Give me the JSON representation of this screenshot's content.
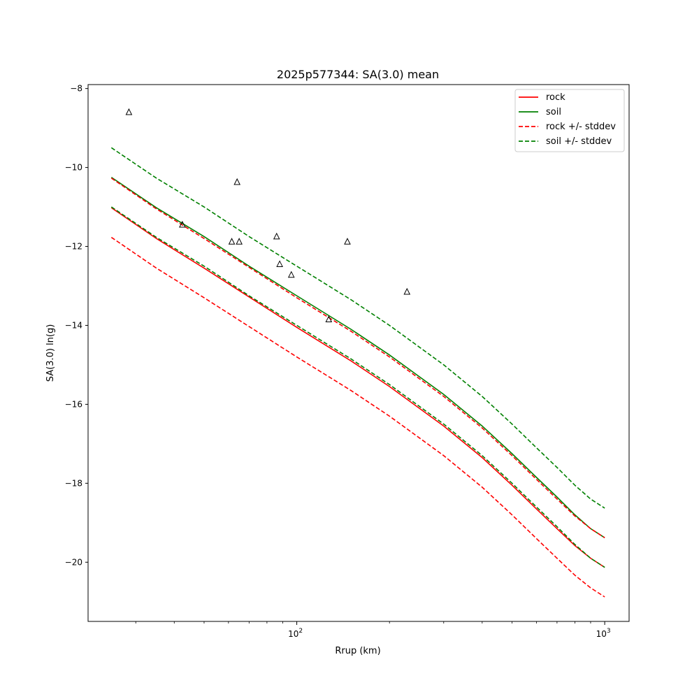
{
  "chart_data": {
    "type": "line",
    "title": "2025p577344: SA(3.0) mean",
    "xlabel": "Rrup (km)",
    "ylabel": "SA(3.0) ln(g)",
    "xscale": "log",
    "xlim": [
      21.0,
      1200.0
    ],
    "ylim": [
      -21.5,
      -7.9
    ],
    "x_ticks": [
      {
        "value": 100,
        "base": "10",
        "exp": "2"
      },
      {
        "value": 1000,
        "base": "10",
        "exp": "3"
      }
    ],
    "y_ticks": [
      {
        "value": -8,
        "label": "−8"
      },
      {
        "value": -10,
        "label": "−10"
      },
      {
        "value": -12,
        "label": "−12"
      },
      {
        "value": -14,
        "label": "−14"
      },
      {
        "value": -16,
        "label": "−16"
      },
      {
        "value": -18,
        "label": "−18"
      },
      {
        "value": -20,
        "label": "−20"
      }
    ],
    "grid": false,
    "legend_position": "top-right",
    "x": [
      25,
      35,
      50,
      70,
      100,
      150,
      200,
      300,
      400,
      500,
      600,
      700,
      800,
      900,
      1000
    ],
    "series": [
      {
        "name": "rock",
        "style": "solid",
        "color": "#ff0000",
        "legend": true,
        "values": [
          -11.02,
          -11.8,
          -12.55,
          -13.28,
          -14.05,
          -14.9,
          -15.55,
          -16.55,
          -17.35,
          -18.05,
          -18.65,
          -19.15,
          -19.58,
          -19.9,
          -20.13
        ]
      },
      {
        "name": "soil",
        "style": "solid",
        "color": "#008000",
        "legend": true,
        "values": [
          -10.25,
          -11.02,
          -11.75,
          -12.5,
          -13.25,
          -14.1,
          -14.75,
          -15.75,
          -16.55,
          -17.25,
          -17.85,
          -18.35,
          -18.8,
          -19.15,
          -19.38
        ]
      },
      {
        "name": "rock +/- stddev",
        "style": "dashed",
        "color": "#ff0000",
        "legend": true,
        "values": [
          -11.77,
          -12.55,
          -13.3,
          -14.03,
          -14.8,
          -15.65,
          -16.3,
          -17.3,
          -18.1,
          -18.8,
          -19.4,
          -19.9,
          -20.33,
          -20.65,
          -20.88
        ]
      },
      {
        "name": "rock +/- stddev",
        "style": "dashed",
        "color": "#ff0000",
        "legend": false,
        "values": [
          -10.27,
          -11.05,
          -11.8,
          -12.53,
          -13.3,
          -14.15,
          -14.8,
          -15.8,
          -16.6,
          -17.3,
          -17.9,
          -18.4,
          -18.83,
          -19.15,
          -19.38
        ]
      },
      {
        "name": "soil +/- stddev",
        "style": "dashed",
        "color": "#008000",
        "legend": true,
        "values": [
          -9.5,
          -10.27,
          -11.0,
          -11.75,
          -12.5,
          -13.35,
          -14.0,
          -15.0,
          -15.8,
          -16.5,
          -17.1,
          -17.6,
          -18.05,
          -18.4,
          -18.63
        ]
      },
      {
        "name": "soil +/- stddev",
        "style": "dashed",
        "color": "#008000",
        "legend": false,
        "values": [
          -11.0,
          -11.77,
          -12.5,
          -13.25,
          -14.0,
          -14.85,
          -15.5,
          -16.5,
          -17.3,
          -18.0,
          -18.6,
          -19.1,
          -19.55,
          -19.9,
          -20.13
        ]
      }
    ],
    "observations": {
      "marker": "triangle",
      "points": [
        {
          "x": 28.5,
          "y": -8.6
        },
        {
          "x": 42.5,
          "y": -11.45
        },
        {
          "x": 61.5,
          "y": -11.88
        },
        {
          "x": 64.0,
          "y": -10.37
        },
        {
          "x": 65.0,
          "y": -11.88
        },
        {
          "x": 86.0,
          "y": -11.75
        },
        {
          "x": 88.0,
          "y": -12.45
        },
        {
          "x": 96.0,
          "y": -12.72
        },
        {
          "x": 127.0,
          "y": -13.85
        },
        {
          "x": 146.0,
          "y": -11.88
        },
        {
          "x": 228.0,
          "y": -13.15
        }
      ]
    }
  }
}
